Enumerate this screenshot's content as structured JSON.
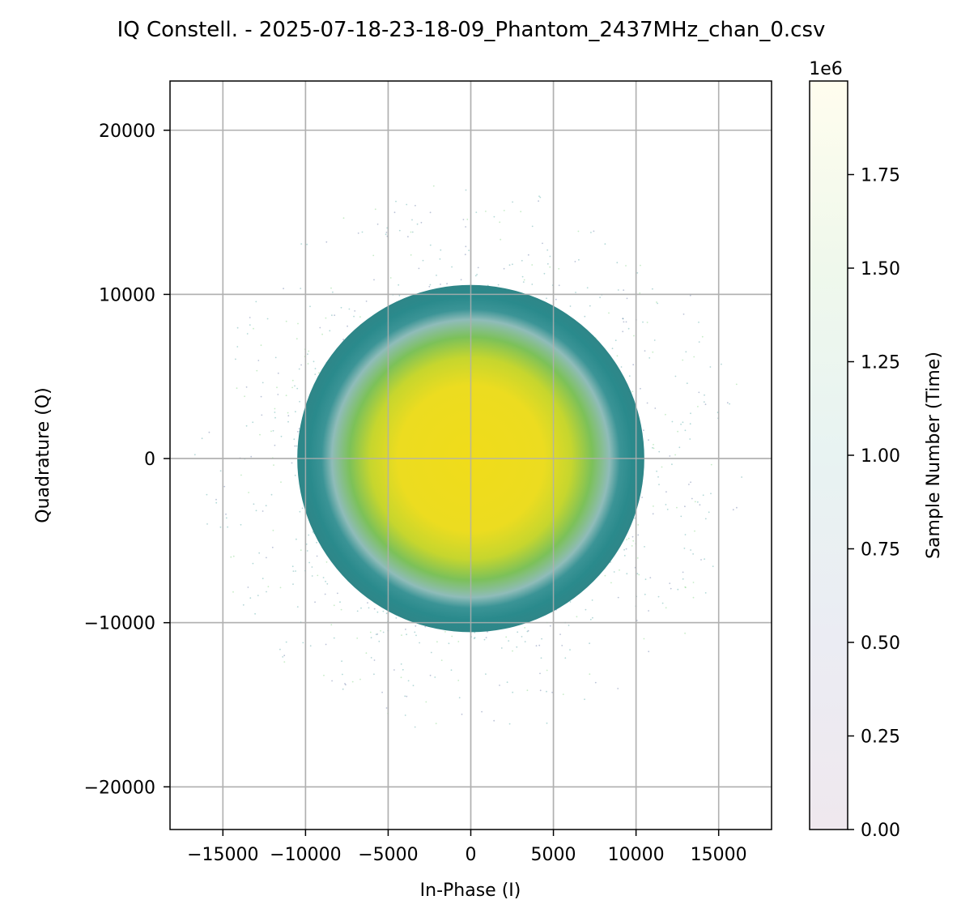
{
  "chart_data": {
    "type": "scatter",
    "title": "IQ Constell. - 2025-07-18-23-18-09_Phantom_2437MHz_chan_0.csv",
    "xlabel": "In-Phase (I)",
    "ylabel": "Quadrature (Q)",
    "xlim": [
      -18200,
      18200
    ],
    "ylim": [
      -22600,
      23000
    ],
    "x_ticks": [
      -15000,
      -10000,
      -5000,
      0,
      5000,
      10000,
      15000
    ],
    "x_tick_labels": [
      "−15000",
      "−10000",
      "−5000",
      "0",
      "5000",
      "10000",
      "15000"
    ],
    "y_ticks": [
      -20000,
      -10000,
      0,
      10000,
      20000
    ],
    "y_tick_labels": [
      "−20000",
      "−10000",
      "0",
      "10000",
      "20000"
    ],
    "grid": true,
    "series": [
      {
        "description_values": {
          "center": [
            0,
            0
          ],
          "outer_ring_radius": 10500,
          "core_radius": 6000
        }
      }
    ],
    "colorbar": {
      "label": "Sample Number (Time)",
      "offset_label": "1e6",
      "range": [
        0,
        2000000
      ],
      "ticks": [
        0,
        0.25,
        0.5,
        0.75,
        1.0,
        1.25,
        1.5,
        1.75
      ],
      "tick_labels": [
        "0.00",
        "0.25",
        "0.50",
        "0.75",
        "1.00",
        "1.25",
        "1.50",
        "1.75"
      ],
      "colormap": [
        "#440154",
        "#3b528b",
        "#21918c",
        "#5ec962",
        "#fde725"
      ],
      "alpha": 0.1
    },
    "colors": {
      "ring": "#2a8a8c",
      "core": "#f0dc1a",
      "grid": "#b0b0b0"
    }
  }
}
